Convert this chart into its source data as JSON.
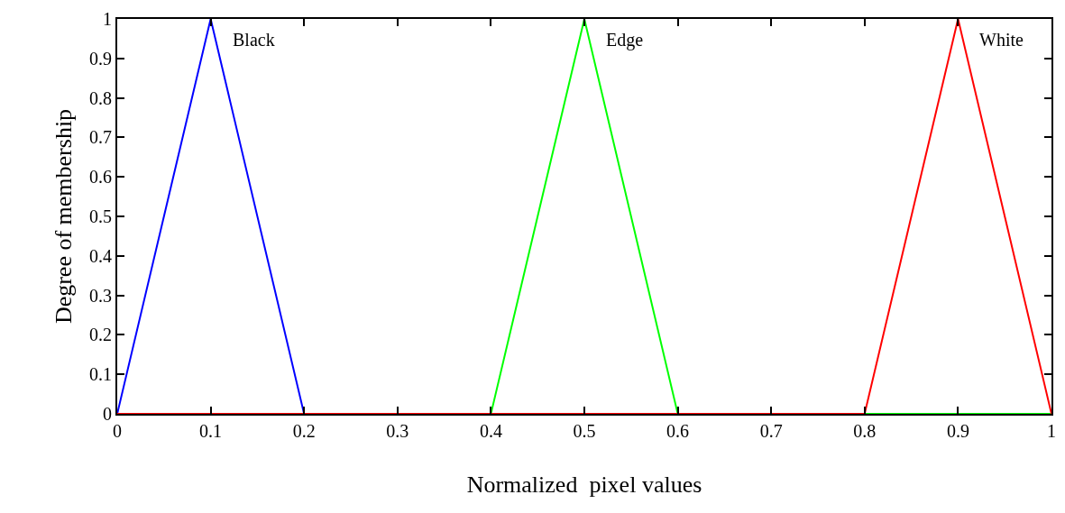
{
  "chart_data": {
    "type": "line",
    "xlabel": "Normalized  pixel values",
    "ylabel": "Degree of membership",
    "series": [
      {
        "name": "Black",
        "color": "#0000ff",
        "x": [
          0,
          0.1,
          0.2,
          1
        ],
        "values": [
          0,
          1,
          0,
          0
        ]
      },
      {
        "name": "Edge",
        "color": "#00ff00",
        "x": [
          0,
          0.4,
          0.5,
          0.6,
          1
        ],
        "values": [
          0,
          0,
          1,
          0,
          0
        ]
      },
      {
        "name": "White",
        "color": "#ff0000",
        "x": [
          0,
          0.8,
          0.9,
          1
        ],
        "values": [
          0,
          0,
          1,
          0
        ]
      }
    ],
    "xlim": [
      0,
      1
    ],
    "ylim": [
      0,
      1
    ],
    "xticks": [
      0,
      0.1,
      0.2,
      0.3,
      0.4,
      0.5,
      0.6,
      0.7,
      0.8,
      0.9,
      1
    ],
    "yticks": [
      0,
      0.1,
      0.2,
      0.3,
      0.4,
      0.5,
      0.6,
      0.7,
      0.8,
      0.9,
      1
    ],
    "legend": false,
    "marker": "none",
    "line_style": "solid"
  }
}
